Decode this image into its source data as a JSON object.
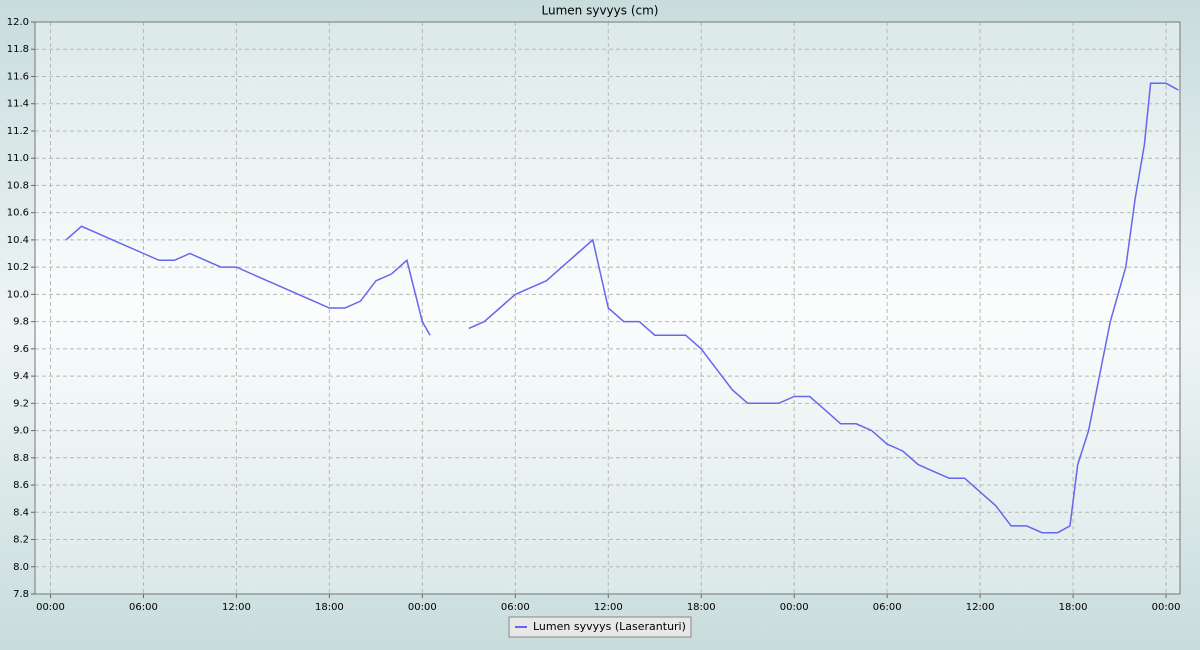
{
  "chart_data": {
    "type": "line",
    "title": "Lumen syvyys (cm)",
    "x": [
      1,
      2,
      3,
      4,
      5,
      6,
      7,
      8,
      9,
      10,
      11,
      12,
      13,
      14,
      15,
      16,
      17,
      18,
      19,
      20,
      21,
      22,
      23,
      24,
      24.5,
      25.5,
      27,
      28,
      29,
      30,
      31,
      32,
      33,
      34,
      35,
      36,
      37,
      38,
      39,
      40,
      41,
      42,
      43,
      44,
      45,
      46,
      47,
      48,
      49,
      50,
      51,
      52,
      53,
      54,
      55,
      56,
      57,
      58,
      59,
      60,
      61,
      62,
      63,
      64,
      65,
      65.8,
      66.3,
      67,
      67.7,
      68.4,
      69.4,
      70,
      70.6,
      71,
      72,
      72.8
    ],
    "series": [
      {
        "name": "Lumen syvyys (Laseranturi)",
        "color": "#6666ee",
        "values": [
          10.4,
          10.5,
          10.45,
          10.4,
          10.35,
          10.3,
          10.25,
          10.25,
          10.3,
          10.25,
          10.2,
          10.2,
          10.15,
          10.1,
          10.05,
          10.0,
          9.95,
          9.9,
          9.9,
          9.95,
          10.1,
          10.15,
          10.25,
          9.8,
          9.7,
          null,
          9.75,
          9.8,
          9.9,
          10.0,
          10.05,
          10.1,
          10.2,
          10.3,
          10.4,
          9.9,
          9.8,
          9.8,
          9.7,
          9.7,
          9.7,
          9.6,
          9.45,
          9.3,
          9.2,
          9.2,
          9.2,
          9.25,
          9.25,
          9.15,
          9.05,
          9.05,
          9.0,
          8.9,
          8.85,
          8.75,
          8.7,
          8.65,
          8.65,
          8.55,
          8.45,
          8.3,
          8.3,
          8.25,
          8.25,
          8.3,
          8.75,
          9.0,
          9.4,
          9.8,
          10.2,
          10.7,
          11.1,
          11.55,
          11.55,
          11.5
        ]
      }
    ],
    "xlim": [
      -1,
      72.9
    ],
    "xticks": [
      {
        "value": 0,
        "label": "00:00"
      },
      {
        "value": 6,
        "label": "06:00"
      },
      {
        "value": 12,
        "label": "12:00"
      },
      {
        "value": 18,
        "label": "18:00"
      },
      {
        "value": 24,
        "label": "00:00"
      },
      {
        "value": 30,
        "label": "06:00"
      },
      {
        "value": 36,
        "label": "12:00"
      },
      {
        "value": 42,
        "label": "18:00"
      },
      {
        "value": 48,
        "label": "00:00"
      },
      {
        "value": 54,
        "label": "06:00"
      },
      {
        "value": 60,
        "label": "12:00"
      },
      {
        "value": 66,
        "label": "18:00"
      },
      {
        "value": 72,
        "label": "00:00"
      }
    ],
    "ylim": [
      7.8,
      12.0
    ],
    "yticks": [
      7.8,
      {
        "value": 8.0,
        "label": "8.0"
      },
      8.2,
      8.4,
      8.6,
      8.8,
      {
        "value": 9.0,
        "label": "9.0"
      },
      9.2,
      9.4,
      9.6,
      9.8,
      {
        "value": 10.0,
        "label": "10.0"
      },
      10.2,
      10.4,
      10.6,
      10.8,
      {
        "value": 11.0,
        "label": "11.0"
      },
      11.2,
      11.4,
      11.6,
      11.8,
      {
        "value": 12.0,
        "label": "12.0"
      }
    ],
    "grid": true,
    "legend": "bottom"
  }
}
